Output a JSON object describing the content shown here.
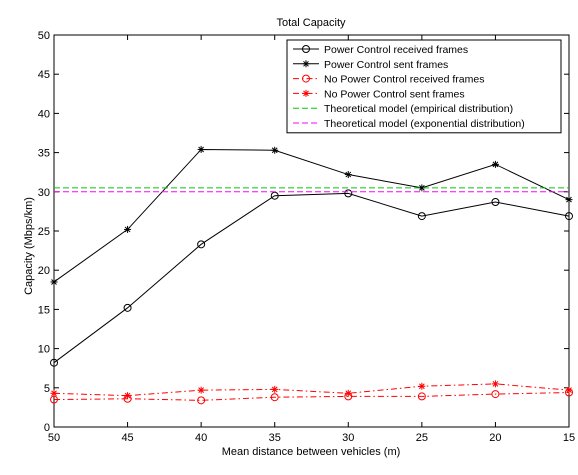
{
  "chart_data": {
    "type": "line",
    "title": "Total Capacity",
    "xlabel": "Mean distance between vehicles (m)",
    "ylabel": "Capacity (Mbps/km)",
    "x": [
      50,
      45,
      40,
      35,
      30,
      25,
      20,
      15
    ],
    "x_reversed": true,
    "xlim": [
      50,
      15
    ],
    "ylim": [
      0,
      50
    ],
    "xticks": [
      "50",
      "45",
      "40",
      "35",
      "30",
      "25",
      "20",
      "15"
    ],
    "yticks": [
      "0",
      "5",
      "10",
      "15",
      "20",
      "25",
      "30",
      "35",
      "40",
      "45",
      "50"
    ],
    "grid": false,
    "legend_position": "top-right",
    "series": [
      {
        "name": "Power Control received frames",
        "values": [
          8.2,
          15.2,
          23.3,
          29.5,
          29.8,
          26.9,
          28.7,
          26.9
        ],
        "color": "#000000",
        "marker": "circle",
        "dash": "solid"
      },
      {
        "name": "Power Control sent frames",
        "values": [
          18.5,
          25.2,
          35.4,
          35.3,
          32.2,
          30.5,
          33.5,
          29.0
        ],
        "color": "#000000",
        "marker": "star",
        "dash": "solid"
      },
      {
        "name": "No Power Control received frames",
        "values": [
          3.5,
          3.6,
          3.4,
          3.8,
          3.9,
          3.9,
          4.2,
          4.4
        ],
        "color": "#ff0000",
        "marker": "circle",
        "dash": "dashdot"
      },
      {
        "name": "No Power Control sent frames",
        "values": [
          4.3,
          4.0,
          4.7,
          4.8,
          4.3,
          5.2,
          5.5,
          4.7
        ],
        "color": "#ff0000",
        "marker": "star",
        "dash": "dashdot"
      },
      {
        "name": "Theoretical model (empirical distribution)",
        "values": [
          30.5,
          30.5,
          30.5,
          30.5,
          30.5,
          30.5,
          30.5,
          30.5
        ],
        "color": "#00cc00",
        "marker": "none",
        "dash": "dashed"
      },
      {
        "name": "Theoretical model (exponential distribution)",
        "values": [
          30.0,
          30.0,
          30.0,
          30.0,
          30.0,
          30.0,
          30.0,
          30.0
        ],
        "color": "#ff00ff",
        "marker": "none",
        "dash": "dashed"
      }
    ]
  }
}
